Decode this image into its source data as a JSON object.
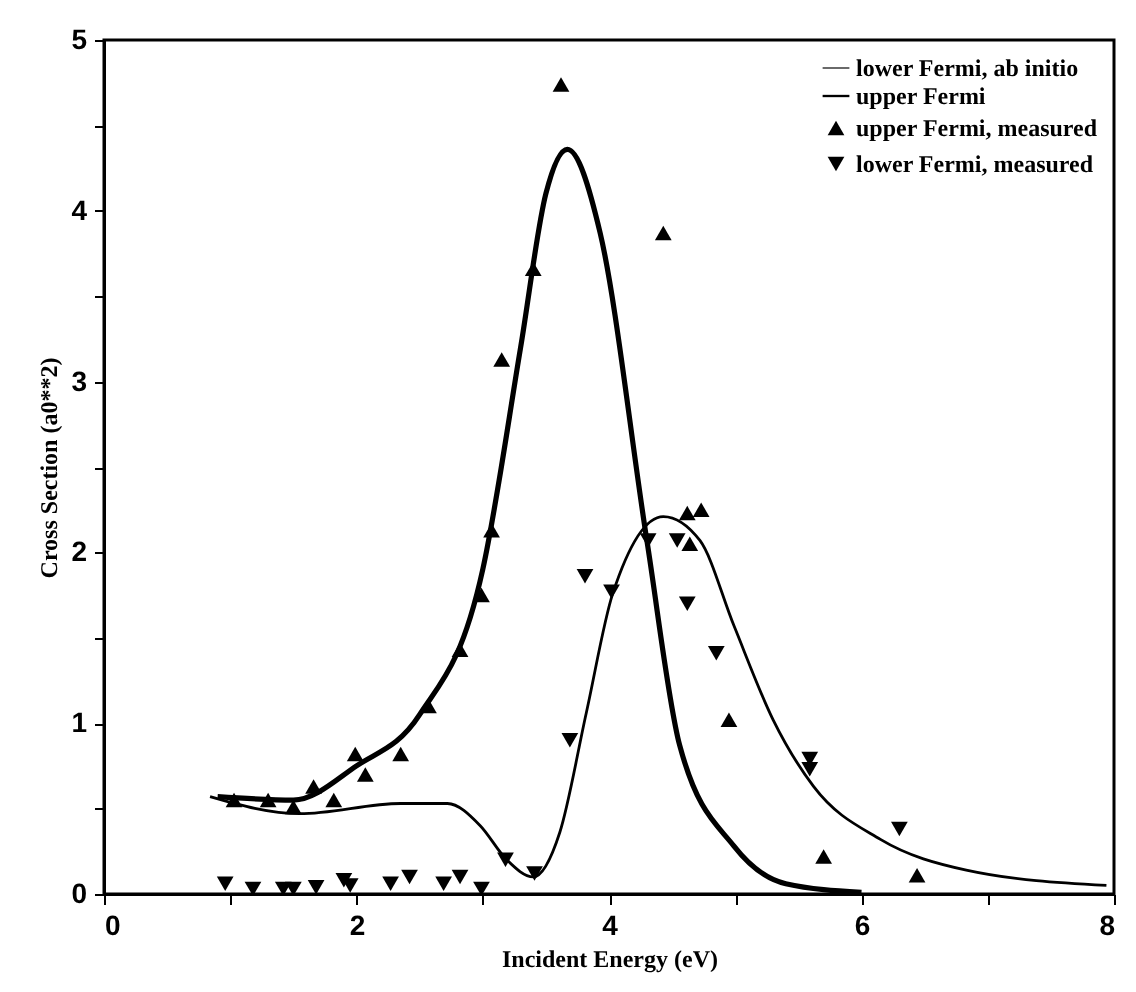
{
  "chart_data": {
    "type": "line",
    "xlabel": "Incident Energy (eV)",
    "ylabel": "Cross Section (a0**2)",
    "xlim": [
      0,
      8
    ],
    "ylim": [
      0,
      5
    ],
    "xticks": [
      0,
      {
        "value": 1,
        "label": null
      },
      2,
      {
        "value": 3,
        "label": null
      },
      4,
      {
        "value": 5,
        "label": null
      },
      6,
      {
        "value": 7,
        "label": null
      },
      8
    ],
    "yticks": [
      0,
      {
        "value": 0.5,
        "label": null
      },
      1,
      {
        "value": 1.5,
        "label": null
      },
      2,
      {
        "value": 2.5,
        "label": null
      },
      3,
      {
        "value": 3.5,
        "label": null
      },
      4,
      {
        "value": 4.5,
        "label": null
      },
      5
    ],
    "legend": "top right",
    "grid": false,
    "series": [
      {
        "name": "lower Fermi, ab initio",
        "type": "line",
        "line_style": "solid",
        "color": "#000000",
        "x": [
          0.84,
          1.55,
          2.35,
          2.72,
          2.98,
          3.19,
          3.4,
          3.61,
          3.82,
          4.03,
          4.43,
          4.72,
          4.99,
          5.3,
          5.62,
          6.15,
          6.83,
          7.94
        ],
        "values": [
          0.57,
          0.47,
          0.53,
          0.53,
          0.4,
          0.2,
          0.1,
          0.36,
          1.06,
          1.76,
          2.21,
          2.07,
          1.57,
          1.02,
          0.63,
          0.32,
          0.14,
          0.05
        ]
      },
      {
        "name": "upper Fermi",
        "type": "line",
        "line_style": "solid",
        "color": "#000000",
        "x": [
          0.9,
          1.5,
          2,
          2.5,
          3,
          3.3,
          3.5,
          3.67,
          3.93,
          4.3,
          4.56,
          4.99,
          5.4,
          6
        ],
        "values": [
          0.57,
          0.55,
          0.75,
          1.05,
          1.9,
          3.2,
          4.1,
          4.36,
          3.87,
          2.07,
          0.87,
          0.28,
          0.06,
          0.01
        ]
      },
      {
        "name": "upper Fermi, measured",
        "type": "scatter",
        "marker": "triangle",
        "color": "#000000",
        "x": [
          1.03,
          1.3,
          1.5,
          1.66,
          1.82,
          1.99,
          2.07,
          2.35,
          2.57,
          2.82,
          2.99,
          3.07,
          3.15,
          3.4,
          3.62,
          4.43,
          4.62,
          4.73,
          4.64,
          4.95,
          5.7,
          6.44
        ],
        "values": [
          0.55,
          0.55,
          0.51,
          0.63,
          0.55,
          0.82,
          0.7,
          0.82,
          1.1,
          1.43,
          1.75,
          2.13,
          3.13,
          3.66,
          4.74,
          3.87,
          2.23,
          2.25,
          2.05,
          1.02,
          0.22,
          0.11
        ]
      },
      {
        "name": "lower Fermi, measured",
        "type": "scatter",
        "marker": "triangle-down",
        "color": "#000000",
        "x": [
          0.96,
          1.18,
          1.42,
          1.5,
          1.68,
          1.9,
          1.95,
          2.27,
          2.42,
          2.69,
          2.82,
          2.99,
          3.18,
          3.41,
          3.69,
          3.81,
          4.02,
          4.31,
          4.54,
          4.62,
          4.85,
          5.59,
          5.59,
          6.3
        ],
        "values": [
          0.06,
          0.03,
          0.03,
          0.03,
          0.04,
          0.08,
          0.05,
          0.06,
          0.1,
          0.06,
          0.1,
          0.03,
          0.2,
          0.12,
          0.9,
          1.86,
          1.77,
          2.07,
          2.07,
          1.7,
          1.41,
          0.79,
          0.73,
          0.38
        ]
      }
    ]
  }
}
